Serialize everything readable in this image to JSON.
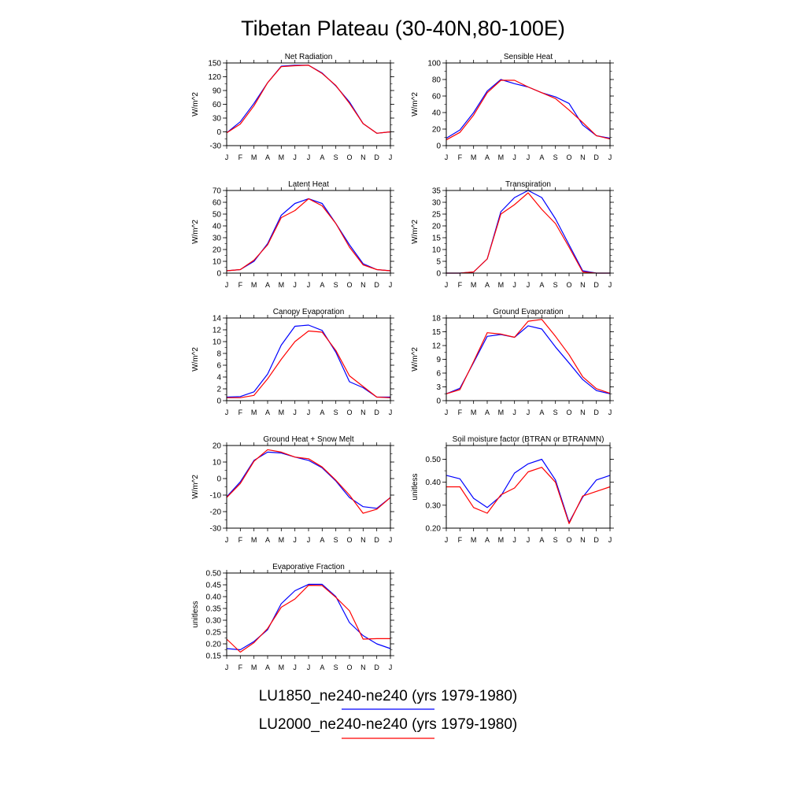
{
  "title": "Tibetan Plateau (30-40N,80-100E)",
  "x_tick_labels": [
    "J",
    "F",
    "M",
    "A",
    "M",
    "J",
    "J",
    "A",
    "S",
    "O",
    "N",
    "D",
    "J"
  ],
  "colors": {
    "LU1850": "#0000ff",
    "LU2000": "#ff0000"
  },
  "legend": [
    {
      "label": "LU1850_ne240-ne240 (yrs 1979-1980)",
      "color": "#0000ff"
    },
    {
      "label": "LU2000_ne240-ne240 (yrs 1979-1980)",
      "color": "#ff0000"
    }
  ],
  "chart_data": [
    {
      "type": "line",
      "title": "Net Radiation",
      "ylabel": "W/m^2",
      "x": [
        "J",
        "F",
        "M",
        "A",
        "M",
        "J",
        "J",
        "A",
        "S",
        "O",
        "N",
        "D",
        "J"
      ],
      "ylim": [
        -30,
        150
      ],
      "yticks": [
        -30,
        0,
        30,
        60,
        90,
        120,
        150
      ],
      "ytick_labels": [
        "-30",
        "0",
        "30",
        "60",
        "90",
        "120",
        "150"
      ],
      "series": [
        {
          "name": "LU1850_ne240-ne240 (yrs 1979-1980)",
          "values": [
            -2,
            22,
            62,
            107,
            143,
            145,
            145,
            128,
            100,
            65,
            18,
            -3,
            0
          ]
        },
        {
          "name": "LU2000_ne240-ne240 (yrs 1979-1980)",
          "values": [
            -2,
            17,
            57,
            107,
            142,
            144,
            145,
            127,
            101,
            62,
            18,
            -3,
            0
          ]
        }
      ]
    },
    {
      "type": "line",
      "title": "Sensible Heat",
      "ylabel": "W/m^2",
      "x": [
        "J",
        "F",
        "M",
        "A",
        "M",
        "J",
        "J",
        "A",
        "S",
        "O",
        "N",
        "D",
        "J"
      ],
      "ylim": [
        0,
        100
      ],
      "yticks": [
        0,
        20,
        40,
        60,
        80,
        100
      ],
      "ytick_labels": [
        "0",
        "20",
        "40",
        "60",
        "80",
        "100"
      ],
      "series": [
        {
          "name": "LU1850_ne240-ne240 (yrs 1979-1980)",
          "values": [
            9,
            19,
            40,
            66,
            80,
            75,
            71,
            64,
            59,
            51,
            25,
            12,
            9
          ]
        },
        {
          "name": "LU2000_ne240-ne240 (yrs 1979-1980)",
          "values": [
            7,
            16,
            37,
            64,
            79,
            79,
            71,
            64,
            57,
            43,
            28,
            12,
            8
          ]
        }
      ]
    },
    {
      "type": "line",
      "title": "Latent Heat",
      "ylabel": "W/m^2",
      "x": [
        "J",
        "F",
        "M",
        "A",
        "M",
        "J",
        "J",
        "A",
        "S",
        "O",
        "N",
        "D",
        "J"
      ],
      "ylim": [
        0,
        70
      ],
      "yticks": [
        0,
        10,
        20,
        30,
        40,
        50,
        60,
        70
      ],
      "ytick_labels": [
        "0",
        "10",
        "20",
        "30",
        "40",
        "50",
        "60",
        "70"
      ],
      "series": [
        {
          "name": "LU1850_ne240-ne240 (yrs 1979-1980)",
          "values": [
            2,
            3,
            10,
            25,
            49,
            59,
            63,
            59,
            42,
            24,
            8,
            3,
            2
          ]
        },
        {
          "name": "LU2000_ne240-ne240 (yrs 1979-1980)",
          "values": [
            2,
            3,
            11,
            24,
            47,
            53,
            63,
            57,
            42,
            22,
            7,
            3,
            2
          ]
        }
      ]
    },
    {
      "type": "line",
      "title": "Transpiration",
      "ylabel": "W/m^2",
      "x": [
        "J",
        "F",
        "M",
        "A",
        "M",
        "J",
        "J",
        "A",
        "S",
        "O",
        "N",
        "D",
        "J"
      ],
      "ylim": [
        0,
        35
      ],
      "yticks": [
        0,
        5,
        10,
        15,
        20,
        25,
        30,
        35
      ],
      "ytick_labels": [
        "0",
        "5",
        "10",
        "15",
        "20",
        "25",
        "30",
        "35"
      ],
      "series": [
        {
          "name": "LU1850_ne240-ne240 (yrs 1979-1980)",
          "values": [
            0,
            0,
            0.5,
            6,
            26,
            32,
            35,
            32,
            23,
            12,
            1,
            0,
            0
          ]
        },
        {
          "name": "LU2000_ne240-ne240 (yrs 1979-1980)",
          "values": [
            0,
            0,
            0.5,
            6,
            25,
            29,
            34,
            27,
            21,
            11,
            0.5,
            0,
            0
          ]
        }
      ]
    },
    {
      "type": "line",
      "title": "Canopy Evaporation",
      "ylabel": "W/m^2",
      "x": [
        "J",
        "F",
        "M",
        "A",
        "M",
        "J",
        "J",
        "A",
        "S",
        "O",
        "N",
        "D",
        "J"
      ],
      "ylim": [
        0,
        14
      ],
      "yticks": [
        0,
        2,
        4,
        6,
        8,
        10,
        12,
        14
      ],
      "ytick_labels": [
        "0",
        "2",
        "4",
        "6",
        "8",
        "10",
        "12",
        "14"
      ],
      "series": [
        {
          "name": "LU1850_ne240-ne240 (yrs 1979-1980)",
          "values": [
            0.6,
            0.7,
            1.5,
            4.5,
            9.4,
            12.6,
            12.8,
            11.9,
            8.2,
            3.2,
            2.2,
            0.6,
            0.6
          ]
        },
        {
          "name": "LU2000_ne240-ne240 (yrs 1979-1980)",
          "values": [
            0.5,
            0.5,
            0.9,
            3.7,
            7.0,
            10.0,
            11.8,
            11.6,
            8.5,
            4.2,
            2.4,
            0.6,
            0.5
          ]
        }
      ]
    },
    {
      "type": "line",
      "title": "Ground Evaporation",
      "ylabel": "W/m^2",
      "x": [
        "J",
        "F",
        "M",
        "A",
        "M",
        "J",
        "J",
        "A",
        "S",
        "O",
        "N",
        "D",
        "J"
      ],
      "ylim": [
        0,
        18
      ],
      "yticks": [
        0,
        3,
        6,
        9,
        12,
        15,
        18
      ],
      "ytick_labels": [
        "0",
        "3",
        "6",
        "9",
        "12",
        "15",
        "18"
      ],
      "series": [
        {
          "name": "LU1850_ne240-ne240 (yrs 1979-1980)",
          "values": [
            1.5,
            2.7,
            8.3,
            14.0,
            14.4,
            13.8,
            16.3,
            15.6,
            11.7,
            8.2,
            4.6,
            2.2,
            1.5
          ]
        },
        {
          "name": "LU2000_ne240-ne240 (yrs 1979-1980)",
          "values": [
            1.5,
            2.4,
            8.5,
            14.8,
            14.5,
            13.8,
            17.3,
            17.7,
            14.0,
            10.0,
            5.2,
            2.6,
            1.6
          ]
        }
      ]
    },
    {
      "type": "line",
      "title": "Ground Heat + Snow Melt",
      "ylabel": "W/m^2",
      "x": [
        "J",
        "F",
        "M",
        "A",
        "M",
        "J",
        "J",
        "A",
        "S",
        "O",
        "N",
        "D",
        "J"
      ],
      "ylim": [
        -30,
        20
      ],
      "yticks": [
        -30,
        -20,
        -10,
        0,
        10,
        20
      ],
      "ytick_labels": [
        "-30",
        "-20",
        "-10",
        "0",
        "10",
        "20"
      ],
      "series": [
        {
          "name": "LU1850_ne240-ne240 (yrs 1979-1980)",
          "values": [
            -11,
            -2,
            11,
            16,
            15.5,
            13,
            11,
            6.5,
            -1.5,
            -11.5,
            -17,
            -18,
            -11.5
          ]
        },
        {
          "name": "LU2000_ne240-ne240 (yrs 1979-1980)",
          "values": [
            -11.5,
            -3,
            10.5,
            17.5,
            16,
            13,
            12,
            7,
            -1,
            -10,
            -21,
            -18.5,
            -11.5
          ]
        }
      ]
    },
    {
      "type": "line",
      "title": "Soil moisture factor (BTRAN or BTRANMN)",
      "ylabel": "unitless",
      "x": [
        "J",
        "F",
        "M",
        "A",
        "M",
        "J",
        "J",
        "A",
        "S",
        "O",
        "N",
        "D",
        "J"
      ],
      "ylim": [
        0.2,
        0.56
      ],
      "yticks": [
        0.2,
        0.3,
        0.4,
        0.5
      ],
      "ytick_labels": [
        "0.20",
        "0.30",
        "0.40",
        "0.50"
      ],
      "series": [
        {
          "name": "LU1850_ne240-ne240 (yrs 1979-1980)",
          "values": [
            0.43,
            0.415,
            0.33,
            0.29,
            0.34,
            0.44,
            0.48,
            0.5,
            0.41,
            0.225,
            0.335,
            0.41,
            0.43
          ]
        },
        {
          "name": "LU2000_ne240-ne240 (yrs 1979-1980)",
          "values": [
            0.38,
            0.38,
            0.29,
            0.265,
            0.345,
            0.375,
            0.445,
            0.465,
            0.4,
            0.22,
            0.34,
            0.36,
            0.38
          ]
        }
      ]
    },
    {
      "type": "line",
      "title": "Evaporative Fraction",
      "ylabel": "unitless",
      "x": [
        "J",
        "F",
        "M",
        "A",
        "M",
        "J",
        "J",
        "A",
        "S",
        "O",
        "N",
        "D",
        "J"
      ],
      "ylim": [
        0.15,
        0.5
      ],
      "yticks": [
        0.15,
        0.2,
        0.25,
        0.3,
        0.35,
        0.4,
        0.45,
        0.5
      ],
      "ytick_labels": [
        "0.15",
        "0.20",
        "0.25",
        "0.30",
        "0.35",
        "0.40",
        "0.45",
        "0.50"
      ],
      "series": [
        {
          "name": "LU1850_ne240-ne240 (yrs 1979-1980)",
          "values": [
            0.18,
            0.175,
            0.21,
            0.26,
            0.37,
            0.425,
            0.452,
            0.452,
            0.4,
            0.29,
            0.235,
            0.2,
            0.18
          ]
        },
        {
          "name": "LU2000_ne240-ne240 (yrs 1979-1980)",
          "values": [
            0.22,
            0.165,
            0.205,
            0.265,
            0.355,
            0.39,
            0.448,
            0.447,
            0.397,
            0.34,
            0.22,
            0.222,
            0.222
          ]
        }
      ]
    }
  ]
}
